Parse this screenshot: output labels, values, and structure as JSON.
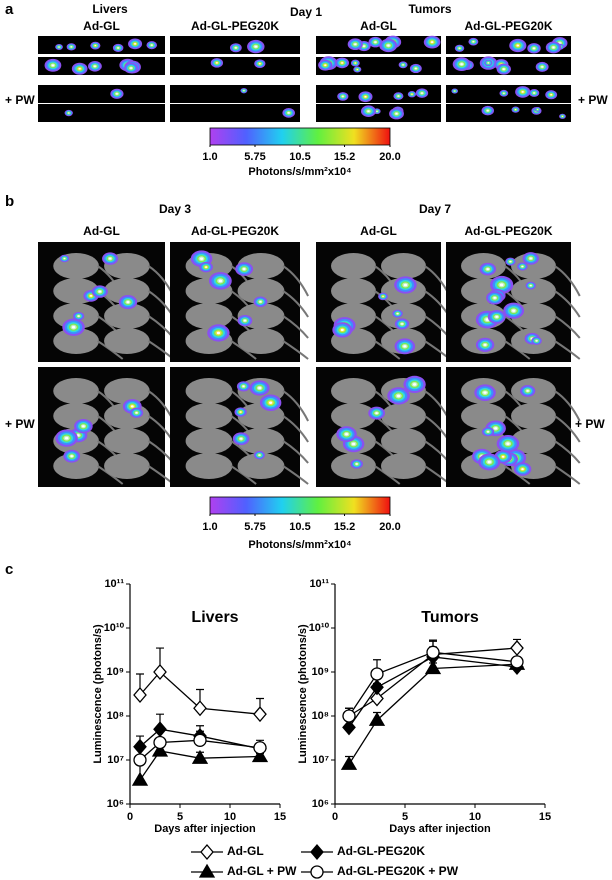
{
  "panel_a": {
    "label": "a",
    "day": "Day 1",
    "groups": [
      {
        "title": "Livers",
        "columns": [
          "Ad-GL",
          "Ad-GL-PEG20K"
        ]
      },
      {
        "title": "Tumors",
        "columns": [
          "Ad-GL",
          "Ad-GL-PEG20K"
        ]
      }
    ],
    "pw_labels": [
      "+ PW",
      "+ PW"
    ],
    "colorbar": {
      "lim": [
        1,
        20
      ],
      "ticks": [
        {
          "value": 1,
          "label": "1.0"
        },
        5.75,
        10.5,
        15.2,
        {
          "value": 20,
          "label": "20.0"
        }
      ],
      "label": "Photons/s/mm²x10⁴"
    }
  },
  "panel_b": {
    "label": "b",
    "groups": [
      {
        "title": "Day 3",
        "columns": [
          "Ad-GL",
          "Ad-GL-PEG20K"
        ]
      },
      {
        "title": "Day 7",
        "columns": [
          "Ad-GL",
          "Ad-GL-PEG20K"
        ]
      }
    ],
    "pw_labels": [
      "+ PW",
      "+ PW"
    ],
    "colorbar": {
      "lim": [
        1,
        20
      ],
      "ticks": [
        {
          "value": 1,
          "label": "1.0"
        },
        5.75,
        10.5,
        15.2,
        {
          "value": 20,
          "label": "20.0"
        }
      ],
      "label": "Photons/s/mm²x10⁴"
    }
  },
  "panel_c": {
    "label": "c"
  },
  "chart_data": [
    {
      "type": "line",
      "title": "Livers",
      "xlabel": "Days after injection",
      "ylabel": "Luminescence (photons/s)",
      "x": [
        1,
        3,
        7,
        13
      ],
      "xlim": [
        0,
        15
      ],
      "xticks": [
        0,
        5,
        10,
        15
      ],
      "log_y": true,
      "ylim": [
        1000000,
        100000000000
      ],
      "yticks": [
        {
          "value": 1000000,
          "label": "10⁶"
        },
        {
          "value": 10000000,
          "label": "10⁷"
        },
        {
          "value": 100000000,
          "label": "10⁸"
        },
        {
          "value": 1000000000,
          "label": "10⁹"
        },
        {
          "value": 10000000000,
          "label": "10¹⁰"
        },
        {
          "value": 100000000000,
          "label": "10¹¹"
        }
      ],
      "series": [
        {
          "name": "Ad-GL",
          "color": "#000000",
          "marker": "diamond",
          "filled": false,
          "values": [
            300000000,
            1000000000,
            150000000,
            110000000
          ],
          "errors": [
            600000000,
            2500000000,
            250000000,
            140000000
          ]
        },
        {
          "name": "Ad-GL-PEG20K",
          "color": "#000000",
          "marker": "diamond",
          "filled": true,
          "values": [
            20000000,
            50000000,
            35000000,
            18000000
          ],
          "errors": [
            15000000,
            60000000,
            25000000,
            4000000
          ]
        },
        {
          "name": "Ad-GL + PW",
          "color": "#000000",
          "marker": "triangle",
          "filled": true,
          "values": [
            3500000,
            16000000,
            11000000,
            12000000
          ],
          "errors": [
            6500000,
            9000000,
            4000000,
            2000000
          ]
        },
        {
          "name": "Ad-GL-PEG20K + PW",
          "color": "#000000",
          "marker": "circle",
          "filled": false,
          "values": [
            10000000,
            25000000,
            28000000,
            19000000
          ],
          "errors": [
            10000000,
            20000000,
            17000000,
            9000000
          ]
        }
      ]
    },
    {
      "type": "line",
      "title": "Tumors",
      "xlabel": "Days after injection",
      "ylabel": "Luminescence (photons/s)",
      "x": [
        1,
        3,
        7,
        13
      ],
      "xlim": [
        0,
        15
      ],
      "xticks": [
        0,
        5,
        10,
        15
      ],
      "log_y": true,
      "ylim": [
        1000000,
        100000000000
      ],
      "yticks": [
        {
          "value": 1000000,
          "label": "10⁶"
        },
        {
          "value": 10000000,
          "label": "10⁷"
        },
        {
          "value": 100000000,
          "label": "10⁸"
        },
        {
          "value": 1000000000,
          "label": "10⁹"
        },
        {
          "value": 10000000000,
          "label": "10¹⁰"
        },
        {
          "value": 100000000000,
          "label": "10¹¹"
        }
      ],
      "series": [
        {
          "values": [
            100000000,
            250000000,
            2500000000,
            3500000000
          ],
          "errors": [
            50000000,
            300000000,
            2500000000,
            2000000000
          ]
        },
        {
          "values": [
            55000000,
            450000000,
            2200000000,
            1300000000
          ],
          "errors": [
            30000000,
            300000000,
            1500000000,
            300000000
          ]
        },
        {
          "values": [
            8000000,
            80000000,
            1200000000,
            1500000000
          ],
          "errors": [
            4000000,
            40000000,
            400000000,
            300000000
          ]
        },
        {
          "values": [
            100000000,
            900000000,
            2800000000,
            1700000000
          ],
          "errors": [
            50000000,
            1000000000,
            2500000000,
            500000000
          ]
        }
      ]
    }
  ]
}
